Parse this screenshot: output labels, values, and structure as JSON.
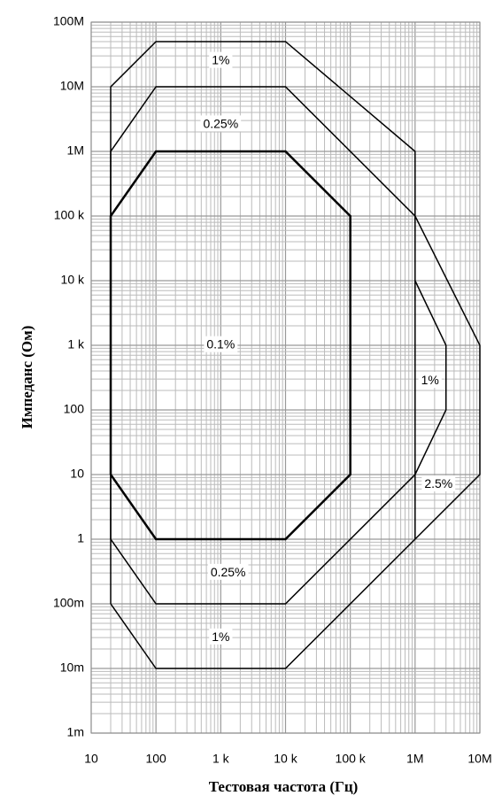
{
  "chart_data": {
    "type": "line",
    "xlabel": "Тестовая частота (Гц)",
    "ylabel": "Импеданс (Ом)",
    "xlog": true,
    "ylog": true,
    "grid": true,
    "minor_grid": true,
    "xlim": [
      10,
      10000000
    ],
    "ylim": [
      0.001,
      100000000
    ],
    "xticks": [
      10,
      100,
      {
        "value": 1000,
        "label": "1 k"
      },
      {
        "value": 10000,
        "label": "10 k"
      },
      {
        "value": 100000,
        "label": "100 k"
      },
      {
        "value": 1000000,
        "label": "1M"
      },
      {
        "value": 10000000,
        "label": "10M"
      }
    ],
    "yticks": [
      {
        "value": 0.001,
        "label": "1m"
      },
      {
        "value": 0.01,
        "label": "10m"
      },
      {
        "value": 0.1,
        "label": "100m"
      },
      1,
      10,
      100,
      {
        "value": 1000,
        "label": "1 k"
      },
      {
        "value": 10000,
        "label": "10 k"
      },
      {
        "value": 100000,
        "label": "100 k"
      },
      {
        "value": 1000000,
        "label": "1M"
      },
      {
        "value": 10000000,
        "label": "10M"
      },
      {
        "value": 100000000,
        "label": "100M"
      }
    ],
    "series": [
      {
        "color": "#000000",
        "width": 1.5,
        "x": [
          20,
          20,
          100,
          10000,
          1000000,
          1000000,
          10000,
          100,
          20
        ],
        "values": [
          0.1,
          10000000,
          50000000,
          50000000,
          1000000,
          1,
          0.01,
          0.01,
          0.1
        ]
      },
      {
        "color": "#000000",
        "width": 1.5,
        "x": [
          20,
          20,
          100,
          10000,
          1000000,
          10000000,
          10000000,
          1000000
        ],
        "values": [
          1,
          1000000,
          10000000,
          10000000,
          100000,
          1000,
          10,
          1
        ]
      },
      {
        "color": "#000000",
        "width": 1.5,
        "x": [
          20,
          100,
          10000,
          1000000,
          3000000,
          3000000,
          1000000
        ],
        "values": [
          1,
          0.1,
          0.1,
          10,
          100,
          1000,
          10000
        ]
      },
      {
        "color": "#000000",
        "width": 2.5,
        "x": [
          20,
          20,
          100,
          10000,
          100000,
          100000,
          10000,
          100,
          20
        ],
        "values": [
          10,
          100000,
          1000000,
          1000000,
          100000,
          10,
          1,
          1,
          10
        ]
      }
    ],
    "annotations": [
      {
        "text": "1%",
        "x": 1000,
        "y": 25000000
      },
      {
        "text": "0.25%",
        "x": 1000,
        "y": 2600000
      },
      {
        "text": "0.1%",
        "x": 1000,
        "y": 1000
      },
      {
        "text": "1%",
        "x": 1700000,
        "y": 280
      },
      {
        "text": "2.5%",
        "x": 2300000,
        "y": 7
      },
      {
        "text": "0.25%",
        "x": 1300,
        "y": 0.3
      },
      {
        "text": "1%",
        "x": 1000,
        "y": 0.03
      }
    ]
  }
}
